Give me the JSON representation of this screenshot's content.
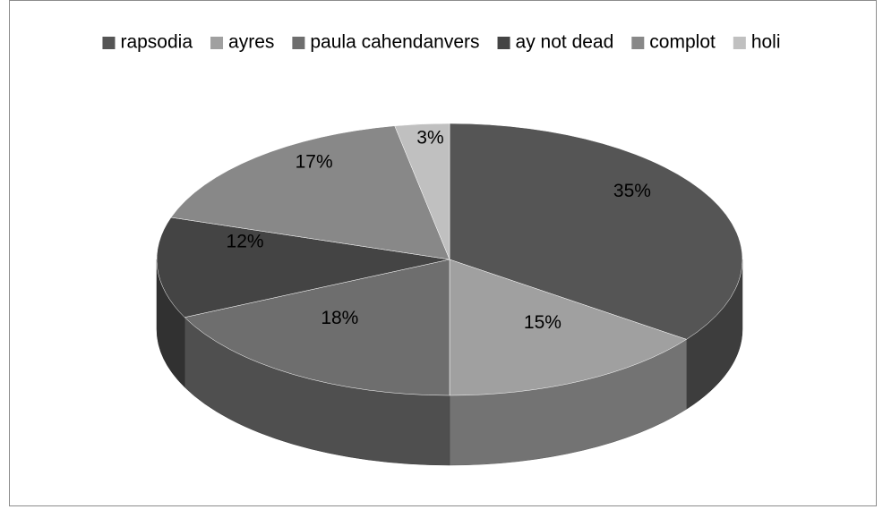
{
  "chart_data": {
    "type": "pie",
    "categories": [
      "rapsodia",
      "ayres",
      "paula cahendanvers",
      "ay not dead",
      "complot",
      "holi"
    ],
    "values": [
      35,
      15,
      18,
      12,
      17,
      3
    ],
    "value_labels": [
      "35%",
      "15%",
      "18%",
      "12%",
      "17%",
      "3%"
    ],
    "colors": [
      "#555555",
      "#a0a0a0",
      "#6e6e6e",
      "#444444",
      "#888888",
      "#c0c0c0"
    ],
    "legend": "top"
  }
}
